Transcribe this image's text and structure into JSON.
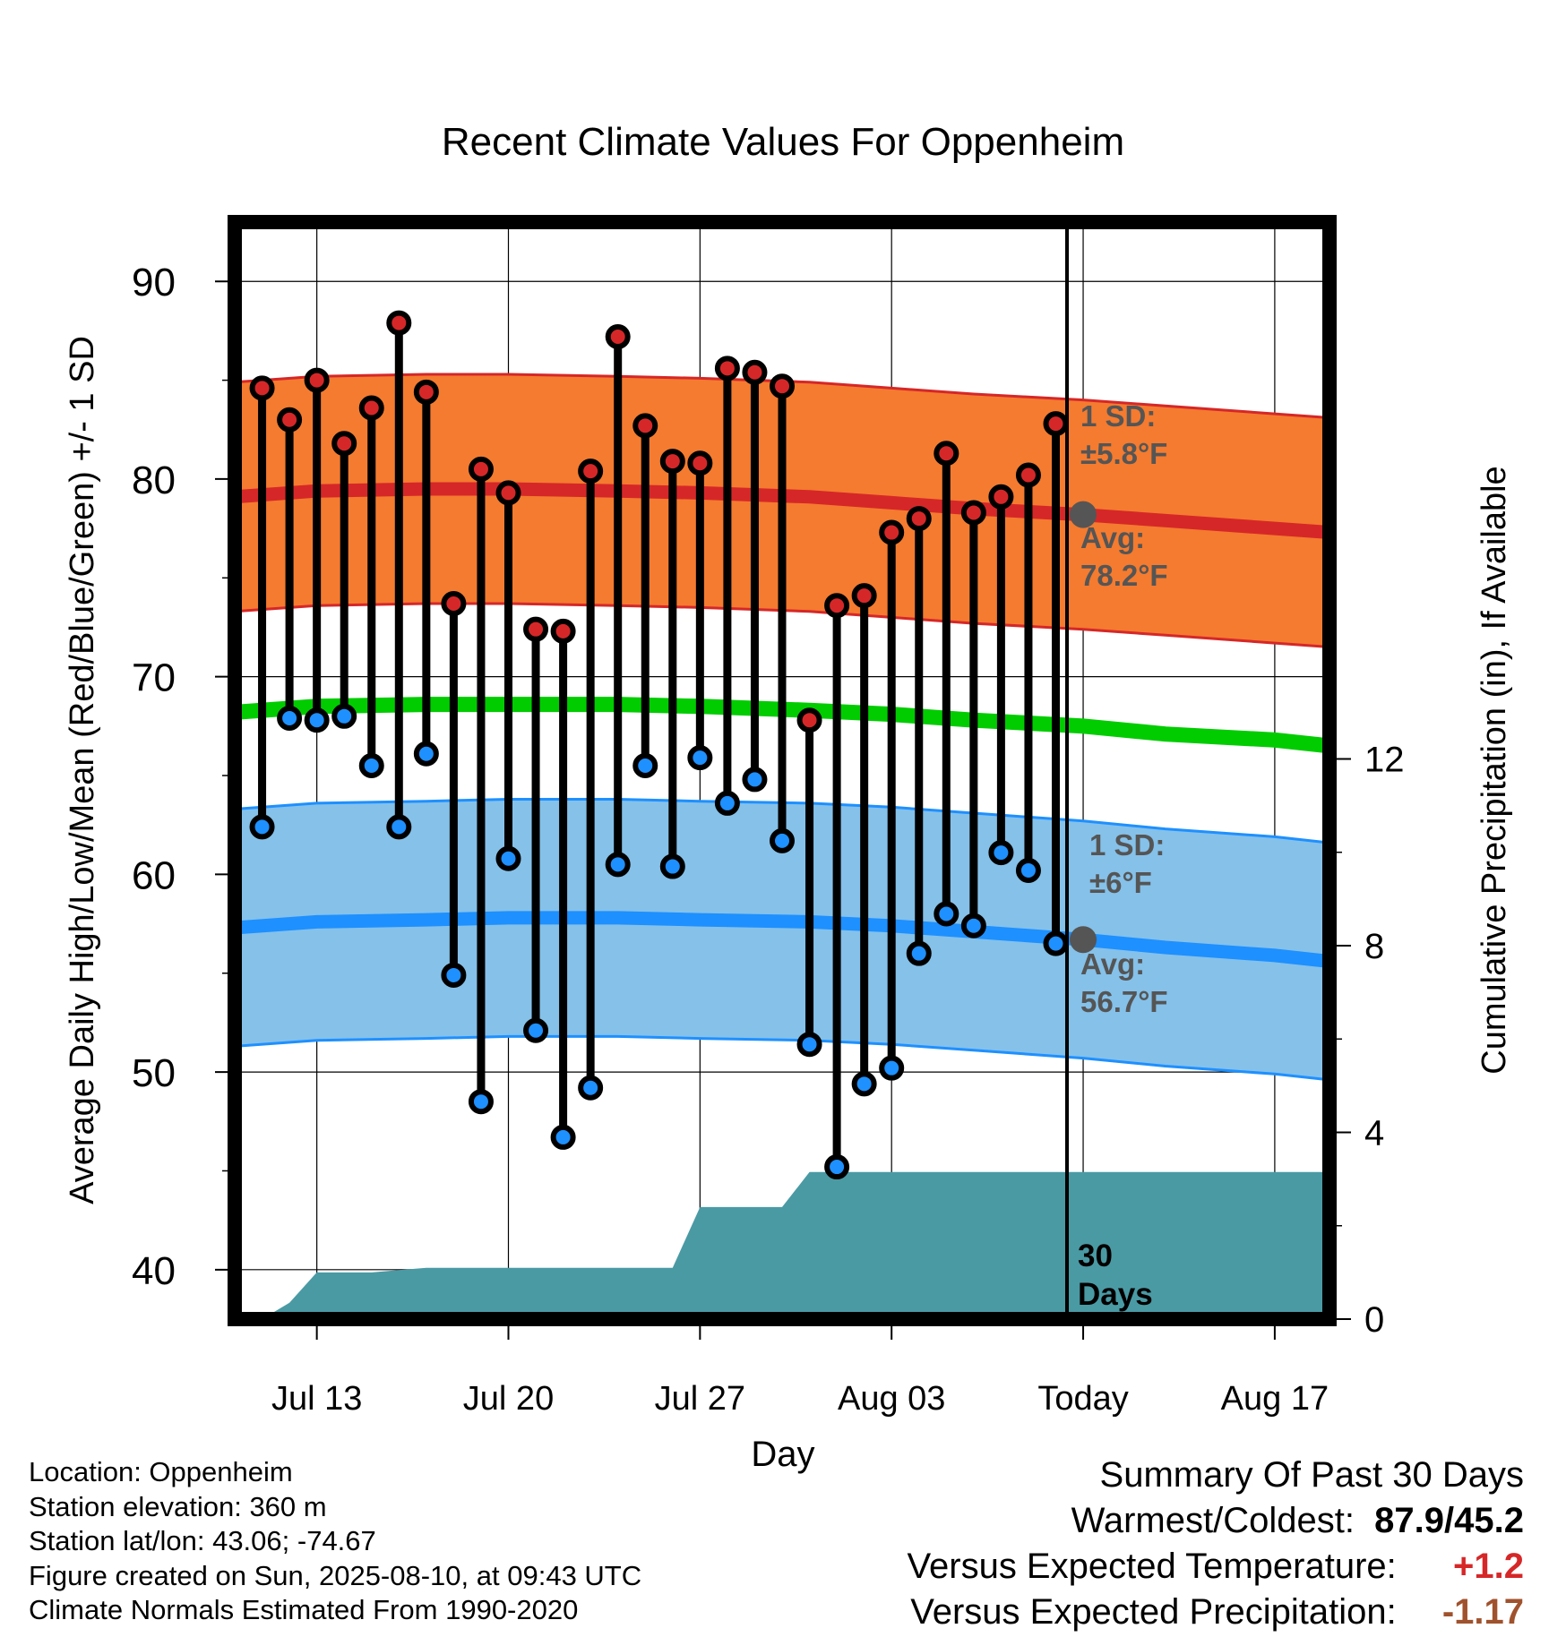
{
  "chart_data": {
    "type": "line",
    "title": "Recent Climate Values For Oppenheim",
    "xlabel": "Day",
    "ylabel": "Average Daily High/Low/Mean (Red/Blue/Green) +/- 1 SD",
    "ylabel_right": "Cumulative Precipitation (in), If Available",
    "x_tick_labels": [
      "Jul 13",
      "Jul 20",
      "Jul 27",
      "Aug 03",
      "Today",
      "Aug 17"
    ],
    "x_tick_dates": [
      "2025-07-13",
      "2025-07-20",
      "2025-07-27",
      "2025-08-03",
      "2025-08-10",
      "2025-08-17"
    ],
    "x_range": [
      "2025-07-10",
      "2025-08-19"
    ],
    "ylim": [
      37.5,
      93
    ],
    "y_ticks": [
      40,
      50,
      60,
      70,
      80,
      90
    ],
    "y_right_ticks": [
      0,
      4,
      8,
      12
    ],
    "y_right_range": [
      0,
      23.5
    ],
    "grid": true,
    "dates": [
      "2025-07-11",
      "2025-07-12",
      "2025-07-13",
      "2025-07-14",
      "2025-07-15",
      "2025-07-16",
      "2025-07-17",
      "2025-07-18",
      "2025-07-19",
      "2025-07-20",
      "2025-07-21",
      "2025-07-22",
      "2025-07-23",
      "2025-07-24",
      "2025-07-25",
      "2025-07-26",
      "2025-07-27",
      "2025-07-28",
      "2025-07-29",
      "2025-07-30",
      "2025-07-31",
      "2025-08-01",
      "2025-08-02",
      "2025-08-03",
      "2025-08-04",
      "2025-08-05",
      "2025-08-06",
      "2025-08-07",
      "2025-08-08",
      "2025-08-09"
    ],
    "daily_high": [
      84.6,
      83.0,
      85.0,
      81.8,
      83.6,
      87.9,
      84.4,
      73.7,
      80.5,
      79.3,
      72.4,
      72.3,
      80.4,
      87.2,
      82.7,
      80.9,
      80.8,
      85.6,
      85.4,
      84.7,
      67.8,
      73.6,
      74.1,
      77.3,
      78.0,
      81.3,
      78.3,
      79.1,
      80.2,
      82.8
    ],
    "daily_low": [
      62.4,
      67.9,
      67.8,
      68.0,
      65.5,
      62.4,
      66.1,
      54.9,
      48.5,
      60.8,
      52.1,
      46.7,
      49.2,
      60.5,
      65.5,
      60.4,
      65.9,
      63.6,
      64.8,
      61.7,
      51.4,
      45.2,
      49.4,
      50.2,
      56.0,
      58.0,
      57.4,
      61.1,
      60.2,
      56.5
    ],
    "normals": {
      "dates": [
        "2025-07-10",
        "2025-07-13",
        "2025-07-17",
        "2025-07-20",
        "2025-07-24",
        "2025-07-27",
        "2025-07-31",
        "2025-08-03",
        "2025-08-06",
        "2025-08-10",
        "2025-08-13",
        "2025-08-17",
        "2025-08-19"
      ],
      "high_avg": [
        79.1,
        79.4,
        79.5,
        79.5,
        79.4,
        79.3,
        79.1,
        78.8,
        78.5,
        78.2,
        77.9,
        77.5,
        77.3
      ],
      "low_avg": [
        57.3,
        57.6,
        57.7,
        57.8,
        57.8,
        57.7,
        57.6,
        57.4,
        57.1,
        56.7,
        56.3,
        55.9,
        55.6
      ],
      "mean_avg": [
        68.2,
        68.5,
        68.6,
        68.6,
        68.6,
        68.5,
        68.3,
        68.1,
        67.8,
        67.5,
        67.1,
        66.8,
        66.5
      ],
      "high_sd": 5.8,
      "low_sd": 6.0
    },
    "precip": {
      "dates": [
        "2025-07-11",
        "2025-07-12",
        "2025-07-13",
        "2025-07-15",
        "2025-07-16",
        "2025-07-17",
        "2025-07-26",
        "2025-07-27",
        "2025-07-30",
        "2025-07-31",
        "2025-08-19"
      ],
      "cumulative": [
        0.0,
        0.35,
        1.0,
        1.0,
        1.05,
        1.1,
        1.1,
        2.4,
        2.4,
        3.15,
        3.15
      ]
    },
    "annotations": {
      "high_sd_label": "1 SD:",
      "high_sd_value": "±5.8°F",
      "high_avg_label": "Avg:",
      "high_avg_value": "78.2°F",
      "high_avg_today": 78.2,
      "low_sd_label": "1 SD:",
      "low_sd_value": "±6°F",
      "low_avg_label": "Avg:",
      "low_avg_value": "56.7°F",
      "low_avg_today": 56.7,
      "days_line1": "30",
      "days_line2": "Days"
    },
    "colors": {
      "high_band": "#f47b2f",
      "high_line": "#d62728",
      "low_band": "#85c1e9",
      "low_line": "#1e90ff",
      "mean_line": "#00cc00",
      "precip": "#4a9aa4",
      "high_dot": "#d62728",
      "low_dot": "#1e90ff",
      "annotation": "#555555"
    }
  },
  "info": {
    "location": "Location: Oppenheim",
    "elevation": "Station elevation: 360 m",
    "latlon": "Station lat/lon: 43.06; -74.67",
    "created": "Figure created on Sun, 2025-08-10, at 09:43 UTC",
    "normals": "Climate Normals Estimated From 1990-2020"
  },
  "summary": {
    "title": "Summary Of Past 30 Days",
    "warm_cold_label": "Warmest/Coldest:",
    "warm_cold_value": "87.9/45.2",
    "temp_label": "Versus Expected Temperature:",
    "temp_value": "+1.2",
    "temp_color": "#d62728",
    "precip_label": "Versus Expected Precipitation:",
    "precip_value": "-1.17",
    "precip_color": "#a0522d"
  }
}
